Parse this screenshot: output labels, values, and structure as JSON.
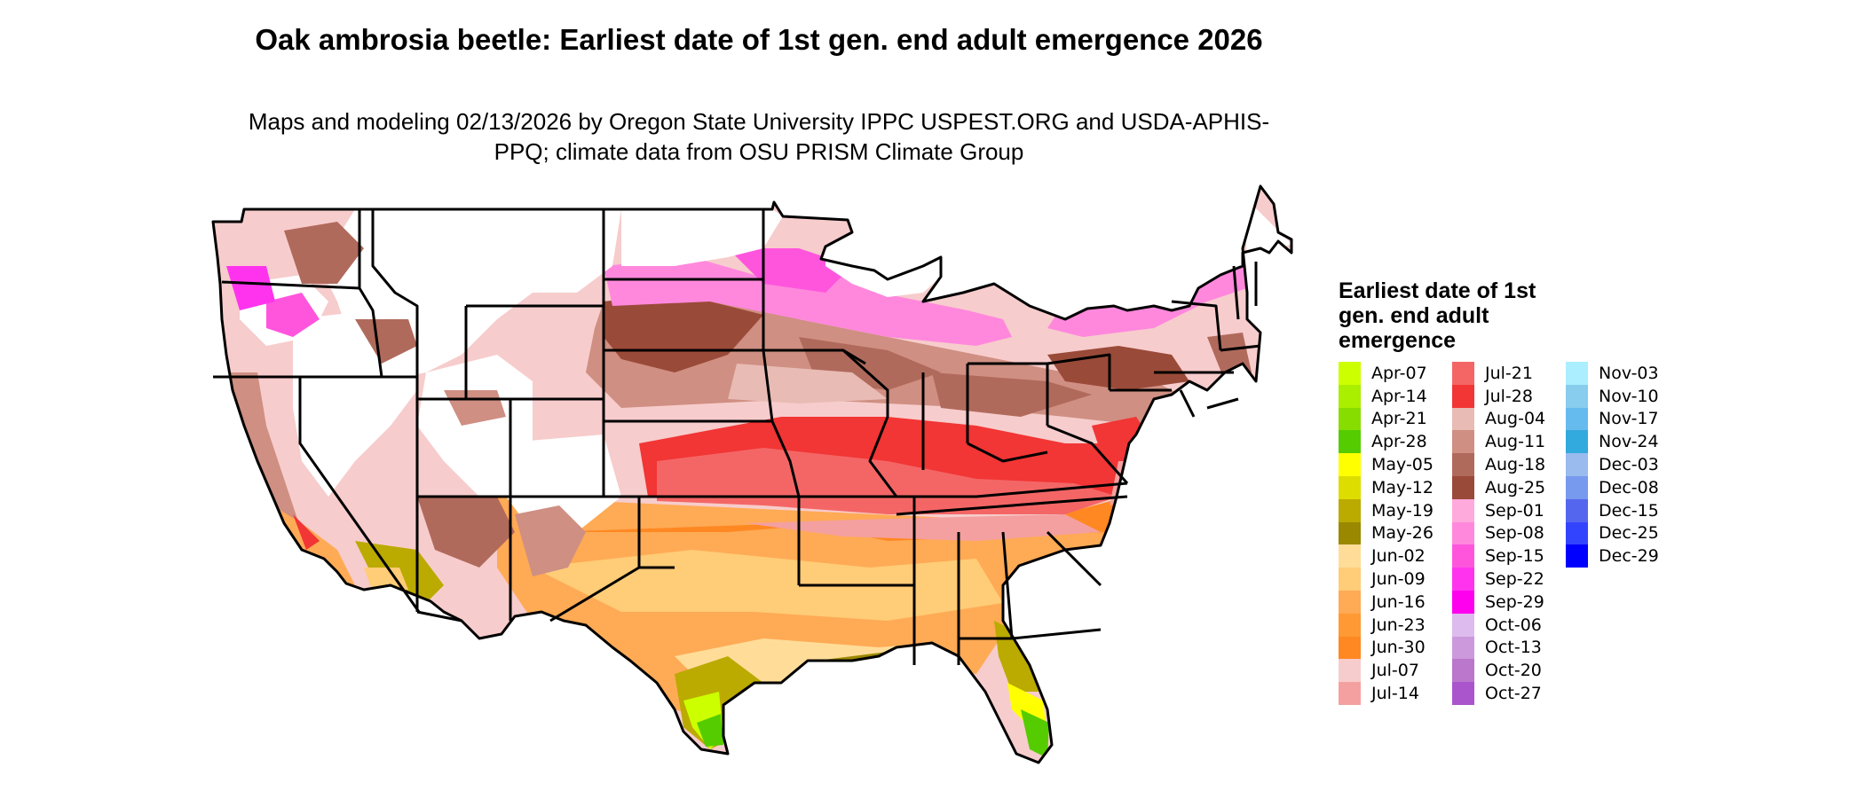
{
  "title": "Oak ambrosia beetle: Earliest date of 1st gen. end adult emergence 2026",
  "subtitle": "Maps and modeling 02/13/2026 by Oregon State University IPPC USPEST.ORG and USDA-APHIS-PPQ; climate data from OSU PRISM Climate Group",
  "legend": {
    "title": "Earliest date of 1st gen. end adult emergence",
    "columns": [
      [
        {
          "label": "Apr-07",
          "color": "#ccff00"
        },
        {
          "label": "Apr-14",
          "color": "#aaee00"
        },
        {
          "label": "Apr-21",
          "color": "#88dd00"
        },
        {
          "label": "Apr-28",
          "color": "#55cc00"
        },
        {
          "label": "May-05",
          "color": "#ffff00"
        },
        {
          "label": "May-12",
          "color": "#dddd00"
        },
        {
          "label": "May-19",
          "color": "#bbaa00"
        },
        {
          "label": "May-26",
          "color": "#998800"
        },
        {
          "label": "Jun-02",
          "color": "#ffdd99"
        },
        {
          "label": "Jun-09",
          "color": "#ffcc77"
        },
        {
          "label": "Jun-16",
          "color": "#ffaa55"
        },
        {
          "label": "Jun-23",
          "color": "#ff9933"
        },
        {
          "label": "Jun-30",
          "color": "#ff8822"
        },
        {
          "label": "Jul-07",
          "color": "#f7cccc"
        },
        {
          "label": "Jul-14",
          "color": "#f4a0a0"
        }
      ],
      [
        {
          "label": "Jul-21",
          "color": "#f46666"
        },
        {
          "label": "Jul-28",
          "color": "#f23535"
        },
        {
          "label": "Aug-04",
          "color": "#e8bbb4"
        },
        {
          "label": "Aug-11",
          "color": "#cf8f82"
        },
        {
          "label": "Aug-18",
          "color": "#b06a5c"
        },
        {
          "label": "Aug-25",
          "color": "#9a4a38"
        },
        {
          "label": "Sep-01",
          "color": "#ffaadd"
        },
        {
          "label": "Sep-08",
          "color": "#ff88dd"
        },
        {
          "label": "Sep-15",
          "color": "#ff55dd"
        },
        {
          "label": "Sep-22",
          "color": "#ff33ee"
        },
        {
          "label": "Sep-29",
          "color": "#ff00ee"
        },
        {
          "label": "Oct-06",
          "color": "#ddbbee"
        },
        {
          "label": "Oct-13",
          "color": "#cc99dd"
        },
        {
          "label": "Oct-20",
          "color": "#bb77cc"
        },
        {
          "label": "Oct-27",
          "color": "#aa55cc"
        }
      ],
      [
        {
          "label": "Nov-03",
          "color": "#aaeeff"
        },
        {
          "label": "Nov-10",
          "color": "#88ccee"
        },
        {
          "label": "Nov-17",
          "color": "#66bbee"
        },
        {
          "label": "Nov-24",
          "color": "#33aadd"
        },
        {
          "label": "Dec-03",
          "color": "#99bbee"
        },
        {
          "label": "Dec-08",
          "color": "#7799ee"
        },
        {
          "label": "Dec-15",
          "color": "#5566ee"
        },
        {
          "label": "Dec-25",
          "color": "#3344ff"
        },
        {
          "label": "Dec-29",
          "color": "#0000ff"
        }
      ]
    ]
  }
}
